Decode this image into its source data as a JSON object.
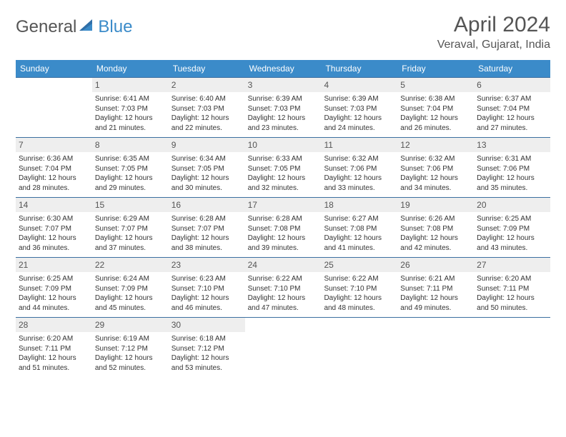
{
  "brand": {
    "part1": "General",
    "part2": "Blue"
  },
  "header": {
    "month_title": "April 2024",
    "location": "Veraval, Gujarat, India"
  },
  "colors": {
    "header_bg": "#3b8bc9",
    "header_text": "#ffffff",
    "daynum_bg": "#eeeeee",
    "border": "#3b6fa0",
    "text": "#333333"
  },
  "daynames": [
    "Sunday",
    "Monday",
    "Tuesday",
    "Wednesday",
    "Thursday",
    "Friday",
    "Saturday"
  ],
  "weeks": [
    [
      {
        "n": "",
        "sr": "",
        "ss": "",
        "dl": ""
      },
      {
        "n": "1",
        "sr": "Sunrise: 6:41 AM",
        "ss": "Sunset: 7:03 PM",
        "dl": "Daylight: 12 hours and 21 minutes."
      },
      {
        "n": "2",
        "sr": "Sunrise: 6:40 AM",
        "ss": "Sunset: 7:03 PM",
        "dl": "Daylight: 12 hours and 22 minutes."
      },
      {
        "n": "3",
        "sr": "Sunrise: 6:39 AM",
        "ss": "Sunset: 7:03 PM",
        "dl": "Daylight: 12 hours and 23 minutes."
      },
      {
        "n": "4",
        "sr": "Sunrise: 6:39 AM",
        "ss": "Sunset: 7:03 PM",
        "dl": "Daylight: 12 hours and 24 minutes."
      },
      {
        "n": "5",
        "sr": "Sunrise: 6:38 AM",
        "ss": "Sunset: 7:04 PM",
        "dl": "Daylight: 12 hours and 26 minutes."
      },
      {
        "n": "6",
        "sr": "Sunrise: 6:37 AM",
        "ss": "Sunset: 7:04 PM",
        "dl": "Daylight: 12 hours and 27 minutes."
      }
    ],
    [
      {
        "n": "7",
        "sr": "Sunrise: 6:36 AM",
        "ss": "Sunset: 7:04 PM",
        "dl": "Daylight: 12 hours and 28 minutes."
      },
      {
        "n": "8",
        "sr": "Sunrise: 6:35 AM",
        "ss": "Sunset: 7:05 PM",
        "dl": "Daylight: 12 hours and 29 minutes."
      },
      {
        "n": "9",
        "sr": "Sunrise: 6:34 AM",
        "ss": "Sunset: 7:05 PM",
        "dl": "Daylight: 12 hours and 30 minutes."
      },
      {
        "n": "10",
        "sr": "Sunrise: 6:33 AM",
        "ss": "Sunset: 7:05 PM",
        "dl": "Daylight: 12 hours and 32 minutes."
      },
      {
        "n": "11",
        "sr": "Sunrise: 6:32 AM",
        "ss": "Sunset: 7:06 PM",
        "dl": "Daylight: 12 hours and 33 minutes."
      },
      {
        "n": "12",
        "sr": "Sunrise: 6:32 AM",
        "ss": "Sunset: 7:06 PM",
        "dl": "Daylight: 12 hours and 34 minutes."
      },
      {
        "n": "13",
        "sr": "Sunrise: 6:31 AM",
        "ss": "Sunset: 7:06 PM",
        "dl": "Daylight: 12 hours and 35 minutes."
      }
    ],
    [
      {
        "n": "14",
        "sr": "Sunrise: 6:30 AM",
        "ss": "Sunset: 7:07 PM",
        "dl": "Daylight: 12 hours and 36 minutes."
      },
      {
        "n": "15",
        "sr": "Sunrise: 6:29 AM",
        "ss": "Sunset: 7:07 PM",
        "dl": "Daylight: 12 hours and 37 minutes."
      },
      {
        "n": "16",
        "sr": "Sunrise: 6:28 AM",
        "ss": "Sunset: 7:07 PM",
        "dl": "Daylight: 12 hours and 38 minutes."
      },
      {
        "n": "17",
        "sr": "Sunrise: 6:28 AM",
        "ss": "Sunset: 7:08 PM",
        "dl": "Daylight: 12 hours and 39 minutes."
      },
      {
        "n": "18",
        "sr": "Sunrise: 6:27 AM",
        "ss": "Sunset: 7:08 PM",
        "dl": "Daylight: 12 hours and 41 minutes."
      },
      {
        "n": "19",
        "sr": "Sunrise: 6:26 AM",
        "ss": "Sunset: 7:08 PM",
        "dl": "Daylight: 12 hours and 42 minutes."
      },
      {
        "n": "20",
        "sr": "Sunrise: 6:25 AM",
        "ss": "Sunset: 7:09 PM",
        "dl": "Daylight: 12 hours and 43 minutes."
      }
    ],
    [
      {
        "n": "21",
        "sr": "Sunrise: 6:25 AM",
        "ss": "Sunset: 7:09 PM",
        "dl": "Daylight: 12 hours and 44 minutes."
      },
      {
        "n": "22",
        "sr": "Sunrise: 6:24 AM",
        "ss": "Sunset: 7:09 PM",
        "dl": "Daylight: 12 hours and 45 minutes."
      },
      {
        "n": "23",
        "sr": "Sunrise: 6:23 AM",
        "ss": "Sunset: 7:10 PM",
        "dl": "Daylight: 12 hours and 46 minutes."
      },
      {
        "n": "24",
        "sr": "Sunrise: 6:22 AM",
        "ss": "Sunset: 7:10 PM",
        "dl": "Daylight: 12 hours and 47 minutes."
      },
      {
        "n": "25",
        "sr": "Sunrise: 6:22 AM",
        "ss": "Sunset: 7:10 PM",
        "dl": "Daylight: 12 hours and 48 minutes."
      },
      {
        "n": "26",
        "sr": "Sunrise: 6:21 AM",
        "ss": "Sunset: 7:11 PM",
        "dl": "Daylight: 12 hours and 49 minutes."
      },
      {
        "n": "27",
        "sr": "Sunrise: 6:20 AM",
        "ss": "Sunset: 7:11 PM",
        "dl": "Daylight: 12 hours and 50 minutes."
      }
    ],
    [
      {
        "n": "28",
        "sr": "Sunrise: 6:20 AM",
        "ss": "Sunset: 7:11 PM",
        "dl": "Daylight: 12 hours and 51 minutes."
      },
      {
        "n": "29",
        "sr": "Sunrise: 6:19 AM",
        "ss": "Sunset: 7:12 PM",
        "dl": "Daylight: 12 hours and 52 minutes."
      },
      {
        "n": "30",
        "sr": "Sunrise: 6:18 AM",
        "ss": "Sunset: 7:12 PM",
        "dl": "Daylight: 12 hours and 53 minutes."
      },
      {
        "n": "",
        "sr": "",
        "ss": "",
        "dl": ""
      },
      {
        "n": "",
        "sr": "",
        "ss": "",
        "dl": ""
      },
      {
        "n": "",
        "sr": "",
        "ss": "",
        "dl": ""
      },
      {
        "n": "",
        "sr": "",
        "ss": "",
        "dl": ""
      }
    ]
  ]
}
